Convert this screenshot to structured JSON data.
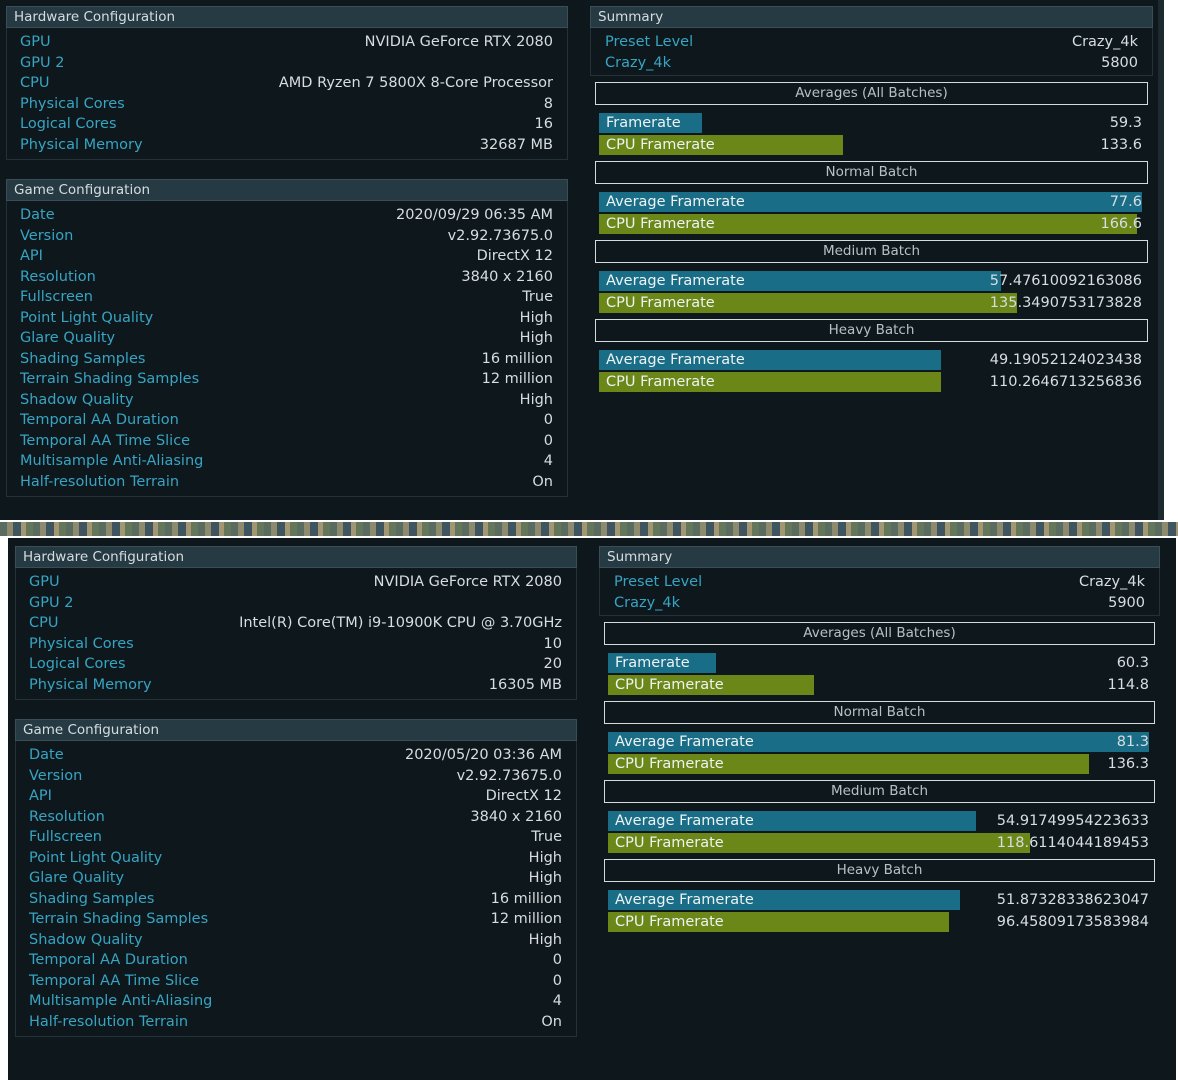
{
  "shots": [
    {
      "hardware": {
        "title": "Hardware Configuration",
        "rows": [
          {
            "label": "GPU",
            "value": "NVIDIA GeForce RTX 2080"
          },
          {
            "label": "GPU 2",
            "value": ""
          },
          {
            "label": "CPU",
            "value": "AMD Ryzen 7 5800X 8-Core Processor"
          },
          {
            "label": "Physical Cores",
            "value": "8"
          },
          {
            "label": "Logical Cores",
            "value": "16"
          },
          {
            "label": "Physical Memory",
            "value": "32687 MB"
          }
        ]
      },
      "game": {
        "title": "Game Configuration",
        "rows": [
          {
            "label": "Date",
            "value": "2020/09/29 06:35 AM"
          },
          {
            "label": "Version",
            "value": "v2.92.73675.0"
          },
          {
            "label": "API",
            "value": "DirectX 12"
          },
          {
            "label": "Resolution",
            "value": "3840 x 2160"
          },
          {
            "label": "Fullscreen",
            "value": "True"
          },
          {
            "label": "Point Light Quality",
            "value": "High"
          },
          {
            "label": "Glare Quality",
            "value": "High"
          },
          {
            "label": "Shading Samples",
            "value": "16 million"
          },
          {
            "label": "Terrain Shading Samples",
            "value": "12 million"
          },
          {
            "label": "Shadow Quality",
            "value": "High"
          },
          {
            "label": "Temporal AA Duration",
            "value": "0"
          },
          {
            "label": "Temporal AA Time Slice",
            "value": "0"
          },
          {
            "label": "Multisample Anti-Aliasing",
            "value": "4"
          },
          {
            "label": "Half-resolution Terrain",
            "value": "On"
          }
        ]
      },
      "summary": {
        "title": "Summary",
        "rows": [
          {
            "label": "Preset Level",
            "value": "Crazy_4k"
          },
          {
            "label": "Crazy_4k",
            "value": "5800"
          }
        ],
        "batches": [
          {
            "title": "Averages (All Batches)",
            "bars": [
              {
                "label": "Framerate",
                "value": "59.3",
                "fill": 0.19,
                "color": "blue"
              },
              {
                "label": "CPU Framerate",
                "value": "133.6",
                "fill": 0.45,
                "color": "green"
              }
            ]
          },
          {
            "title": "Normal Batch",
            "bars": [
              {
                "label": "Average Framerate",
                "value": "77.6",
                "fill": 1.0,
                "color": "blue"
              },
              {
                "label": "CPU Framerate",
                "value": "166.6",
                "fill": 0.99,
                "color": "green"
              }
            ]
          },
          {
            "title": "Medium Batch",
            "bars": [
              {
                "label": "Average Framerate",
                "value": "57.47610092163086",
                "fill": 0.74,
                "color": "blue"
              },
              {
                "label": "CPU Framerate",
                "value": "135.3490753173828",
                "fill": 0.77,
                "color": "green"
              }
            ]
          },
          {
            "title": "Heavy Batch",
            "bars": [
              {
                "label": "Average Framerate",
                "value": "49.19052124023438",
                "fill": 0.63,
                "color": "blue"
              },
              {
                "label": "CPU Framerate",
                "value": "110.2646713256836",
                "fill": 0.63,
                "color": "green"
              }
            ]
          }
        ]
      }
    },
    {
      "hardware": {
        "title": "Hardware Configuration",
        "rows": [
          {
            "label": "GPU",
            "value": "NVIDIA GeForce RTX 2080"
          },
          {
            "label": "GPU 2",
            "value": ""
          },
          {
            "label": "CPU",
            "value": "Intel(R) Core(TM) i9-10900K CPU @ 3.70GHz"
          },
          {
            "label": "Physical Cores",
            "value": "10"
          },
          {
            "label": "Logical Cores",
            "value": "20"
          },
          {
            "label": "Physical Memory",
            "value": "16305 MB"
          }
        ]
      },
      "game": {
        "title": "Game Configuration",
        "rows": [
          {
            "label": "Date",
            "value": "2020/05/20 03:36 AM"
          },
          {
            "label": "Version",
            "value": "v2.92.73675.0"
          },
          {
            "label": "API",
            "value": "DirectX 12"
          },
          {
            "label": "Resolution",
            "value": "3840 x 2160"
          },
          {
            "label": "Fullscreen",
            "value": "True"
          },
          {
            "label": "Point Light Quality",
            "value": "High"
          },
          {
            "label": "Glare Quality",
            "value": "High"
          },
          {
            "label": "Shading Samples",
            "value": "16 million"
          },
          {
            "label": "Terrain Shading Samples",
            "value": "12 million"
          },
          {
            "label": "Shadow Quality",
            "value": "High"
          },
          {
            "label": "Temporal AA Duration",
            "value": "0"
          },
          {
            "label": "Temporal AA Time Slice",
            "value": "0"
          },
          {
            "label": "Multisample Anti-Aliasing",
            "value": "4"
          },
          {
            "label": "Half-resolution Terrain",
            "value": "On"
          }
        ]
      },
      "summary": {
        "title": "Summary",
        "rows": [
          {
            "label": "Preset Level",
            "value": "Crazy_4k"
          },
          {
            "label": "Crazy_4k",
            "value": "5900"
          }
        ],
        "batches": [
          {
            "title": "Averages (All Batches)",
            "bars": [
              {
                "label": "Framerate",
                "value": "60.3",
                "fill": 0.2,
                "color": "blue"
              },
              {
                "label": "CPU Framerate",
                "value": "114.8",
                "fill": 0.38,
                "color": "green"
              }
            ]
          },
          {
            "title": "Normal Batch",
            "bars": [
              {
                "label": "Average Framerate",
                "value": "81.3",
                "fill": 1.0,
                "color": "blue"
              },
              {
                "label": "CPU Framerate",
                "value": "136.3",
                "fill": 0.89,
                "color": "green"
              }
            ]
          },
          {
            "title": "Medium Batch",
            "bars": [
              {
                "label": "Average Framerate",
                "value": "54.91749954223633",
                "fill": 0.68,
                "color": "blue"
              },
              {
                "label": "CPU Framerate",
                "value": "118.6114044189453",
                "fill": 0.78,
                "color": "green"
              }
            ]
          },
          {
            "title": "Heavy Batch",
            "bars": [
              {
                "label": "Average Framerate",
                "value": "51.87328338623047",
                "fill": 0.65,
                "color": "blue"
              },
              {
                "label": "CPU Framerate",
                "value": "96.45809173583984",
                "fill": 0.63,
                "color": "green"
              }
            ]
          }
        ]
      }
    }
  ]
}
